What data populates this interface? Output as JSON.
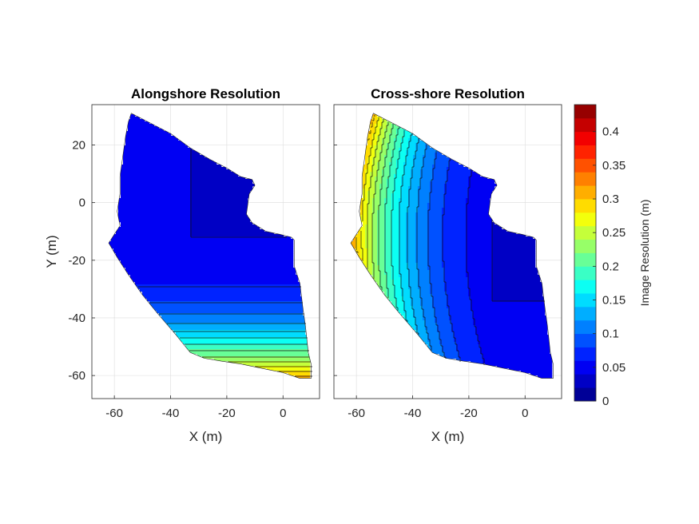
{
  "chart_data": {
    "type": "contour",
    "colormap": "jet",
    "panels": [
      {
        "title": "Alongshore Resolution",
        "xlabel": "X (m)",
        "ylabel": "Y (m)",
        "xlim": [
          -68,
          13
        ],
        "ylim": [
          -68,
          34
        ],
        "xticks": [
          -60,
          -40,
          -20,
          0
        ],
        "yticks": [
          -60,
          -40,
          -20,
          0,
          20
        ],
        "grid": true,
        "field": "alongshore"
      },
      {
        "title": "Cross-shore Resolution",
        "xlabel": "X (m)",
        "ylabel": "",
        "xlim": [
          -68,
          13
        ],
        "ylim": [
          -68,
          34
        ],
        "xticks": [
          -60,
          -40,
          -20,
          0
        ],
        "yticks": [
          -60,
          -40,
          -20,
          0,
          20
        ],
        "grid": true,
        "field": "crossshore"
      }
    ],
    "domain_outline": [
      [
        -54,
        31
      ],
      [
        -48,
        28
      ],
      [
        -40,
        24
      ],
      [
        -33,
        19
      ],
      [
        -26,
        15
      ],
      [
        -20,
        12
      ],
      [
        -15,
        9
      ],
      [
        -11,
        8
      ],
      [
        -10,
        6
      ],
      [
        -12,
        3
      ],
      [
        -13,
        -4
      ],
      [
        -11,
        -7
      ],
      [
        -6,
        -10
      ],
      [
        -1,
        -11
      ],
      [
        3,
        -12
      ],
      [
        4,
        -13
      ],
      [
        4,
        -22
      ],
      [
        6,
        -28
      ],
      [
        7,
        -36
      ],
      [
        8,
        -43
      ],
      [
        9,
        -52
      ],
      [
        10,
        -56
      ],
      [
        10,
        -61
      ],
      [
        6,
        -61
      ],
      [
        0,
        -59
      ],
      [
        -5,
        -58
      ],
      [
        -10,
        -57
      ],
      [
        -15,
        -56
      ],
      [
        -22,
        -55
      ],
      [
        -28,
        -54
      ],
      [
        -33,
        -52
      ],
      [
        -38,
        -46
      ],
      [
        -45,
        -38
      ],
      [
        -50,
        -32
      ],
      [
        -55,
        -25
      ],
      [
        -59,
        -19
      ],
      [
        -62,
        -14
      ],
      [
        -60,
        -11
      ],
      [
        -58,
        -8
      ],
      [
        -59,
        -3
      ],
      [
        -58,
        3
      ],
      [
        -58,
        9
      ],
      [
        -57,
        16
      ],
      [
        -56,
        23
      ],
      [
        -55,
        28
      ]
    ],
    "colorbar": {
      "label": "Image Resolution (m)",
      "min": 0,
      "max": 0.44,
      "levels": 22,
      "ticks": [
        0,
        0.05,
        0.1,
        0.15,
        0.2,
        0.25,
        0.3,
        0.35,
        0.4
      ],
      "tick_labels": [
        "0",
        "0.05",
        "0.1",
        "0.15",
        "0.2",
        "0.25",
        "0.3",
        "0.35",
        "0.4"
      ]
    }
  }
}
